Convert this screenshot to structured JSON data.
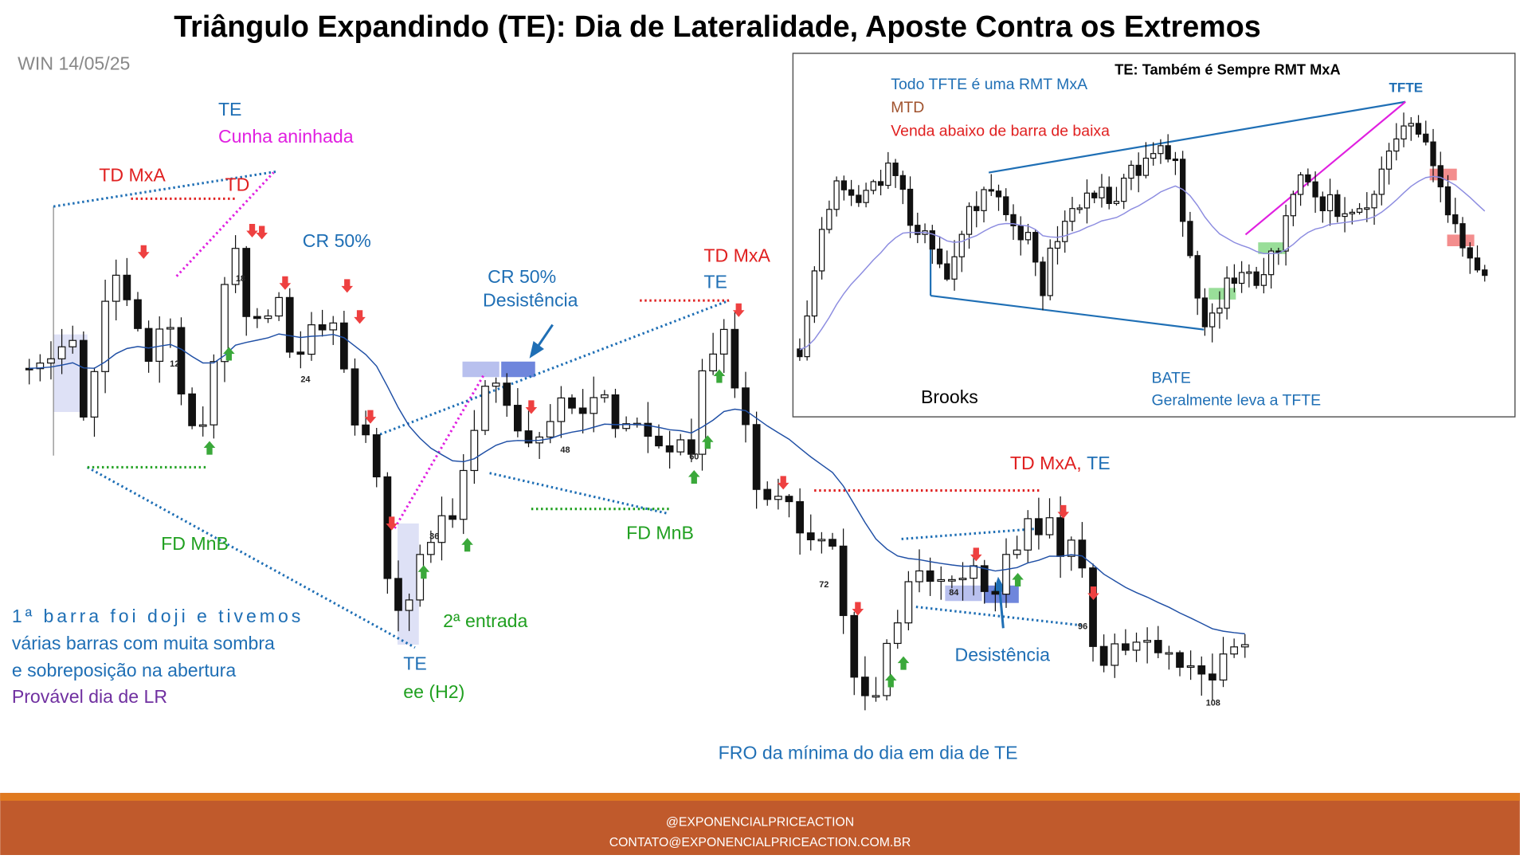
{
  "header": {
    "title": "Triângulo Expandindo (TE): Dia de Lateralidade, Aposte Contra os Extremos",
    "subtitle": "WIN 14/05/25"
  },
  "annotations": [
    "TE",
    "Cunha aninhada",
    "TD MxA",
    "TD",
    "CR 50%",
    "CR 50%",
    "Desistência",
    "TD MxA",
    "TE",
    "FD MnB",
    "FD MnB",
    "1ª barra foi doji e tivemos",
    "várias barras com muita sombra",
    "e sobreposição na abertura",
    "Provável dia de LR",
    "2ª entrada",
    "TE",
    "ee (H2)",
    "TD MxA,",
    "TE",
    "Desistência",
    "FRO da mínima do dia em dia de TE"
  ],
  "bar_numbers": [
    12,
    18,
    24,
    36,
    48,
    60,
    72,
    84,
    96,
    108
  ],
  "inset": {
    "title": "TE: Também é Sempre RMT MxA",
    "lines": [
      "Todo TFTE é uma RMT MxA",
      "MTD",
      "Venda abaixo de barra de baixa"
    ],
    "tfte": "TFTE",
    "author": "Brooks",
    "bate": "BATE",
    "bate_note": "Geralmente leva a TFTE"
  },
  "footer": {
    "handle": "@EXPONENCIALPRICEACTION",
    "contact": "CONTATO@EXPONENCIALPRICEACTION.COM.BR"
  }
}
